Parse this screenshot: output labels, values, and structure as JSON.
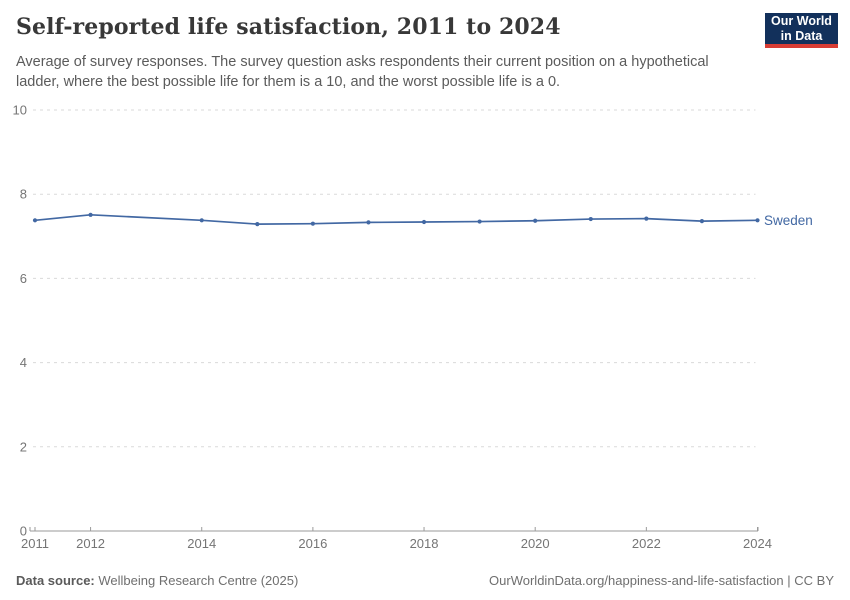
{
  "header": {
    "title": "Self-reported life satisfaction, 2011 to 2024",
    "subtitle": "Average of survey responses. The survey question asks respondents their current position on a hypothetical ladder, where the best possible life for them is a 10, and the worst possible life is a 0.",
    "logo": {
      "line1": "Our World",
      "line2": "in Data"
    }
  },
  "chart_data": {
    "type": "line",
    "title": "Self-reported life satisfaction, 2011 to 2024",
    "x": [
      2011,
      2012,
      2014,
      2015,
      2016,
      2017,
      2018,
      2019,
      2020,
      2021,
      2022,
      2023,
      2024
    ],
    "series": [
      {
        "name": "Sweden",
        "values": [
          7.38,
          7.51,
          7.38,
          7.29,
          7.3,
          7.33,
          7.34,
          7.35,
          7.37,
          7.41,
          7.42,
          7.36,
          7.38
        ]
      }
    ],
    "series_end_label": "Sweden",
    "note_missing_years": [
      2013
    ],
    "xlim": [
      2011,
      2024
    ],
    "ylim": [
      0,
      10
    ],
    "xticks": [
      2011,
      2012,
      2014,
      2016,
      2018,
      2020,
      2022,
      2024
    ],
    "yticks": [
      0,
      2,
      4,
      6,
      8,
      10
    ],
    "grid": "horizontal-dashed",
    "legend": "end-of-line-label"
  },
  "footer": {
    "source_label": "Data source:",
    "source_value": "Wellbeing Research Centre (2025)",
    "credit_url": "OurWorldinData.org/happiness-and-life-satisfaction",
    "credit_separator": "|",
    "credit_license": "CC BY"
  },
  "colors": {
    "line": "#4268a3",
    "grid": "#dadada",
    "axis": "#9a9a9a",
    "tick_label": "#757575",
    "logo_bg": "#12305b",
    "logo_stripe": "#d73c34"
  }
}
